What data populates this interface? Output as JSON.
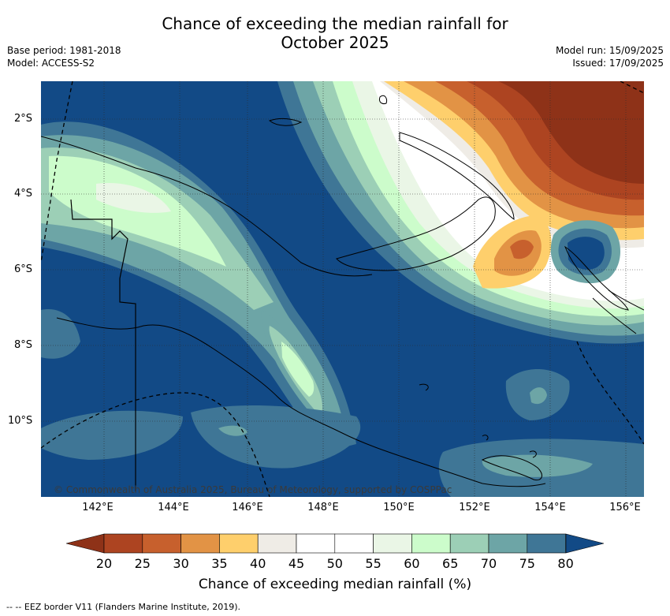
{
  "title_line1": "Chance of exceeding the median rainfall for",
  "title_line2": "October 2025",
  "base_period": "Base period: 1981-2018",
  "model": "Model: ACCESS-S2",
  "model_run": "Model run: 15/09/2025",
  "issued": "Issued: 17/09/2025",
  "lat_labels": [
    "2°S",
    "4°S",
    "6°S",
    "8°S",
    "10°S"
  ],
  "lon_labels": [
    "142°E",
    "144°E",
    "146°E",
    "148°E",
    "150°E",
    "152°E",
    "154°E",
    "156°E"
  ],
  "credit": "© Commonwealth of Australia 2025, Bureau of Meteorology, supported by COSPPac",
  "colorbar": {
    "ticks": [
      "20",
      "25",
      "30",
      "35",
      "40",
      "45",
      "50",
      "55",
      "60",
      "65",
      "70",
      "75",
      "80"
    ],
    "colors": [
      "#ad4421",
      "#c7602d",
      "#e29345",
      "#fecf6c",
      "#efece6",
      "#ffffff",
      "#ffffff",
      "#eaf6e6",
      "#ccfccb",
      "#9ccfb6",
      "#6da5a6",
      "#3f7696"
    ],
    "under_color": "#8e3218",
    "over_color": "#124a86",
    "title": "Chance of exceeding median rainfall (%)"
  },
  "legend_note": "-- -- EEZ border V11 (Flanders Marine Institute, 2019)."
}
